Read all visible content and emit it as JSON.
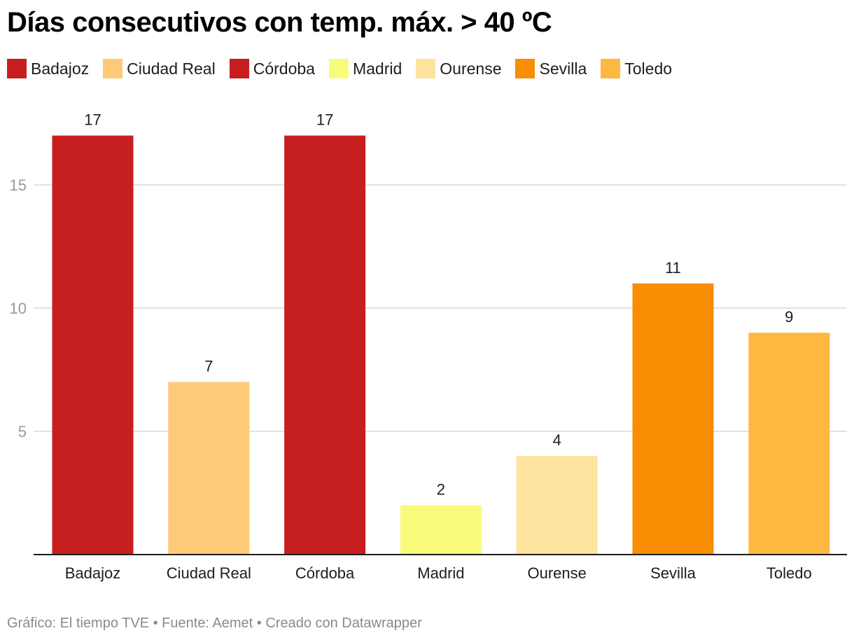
{
  "header": {
    "title": "Días consecutivos con temp. máx. > 40 ºC"
  },
  "legend": [
    {
      "label": "Badajoz",
      "color": "#c71e1f"
    },
    {
      "label": "Ciudad Real",
      "color": "#fdcb78"
    },
    {
      "label": "Córdoba",
      "color": "#c71e1f"
    },
    {
      "label": "Madrid",
      "color": "#f8fb7b"
    },
    {
      "label": "Ourense",
      "color": "#fee39e"
    },
    {
      "label": "Sevilla",
      "color": "#f98d03"
    },
    {
      "label": "Toledo",
      "color": "#feb842"
    }
  ],
  "chart_data": {
    "type": "bar",
    "title": "Días consecutivos con temp. máx. > 40 ºC",
    "xlabel": "",
    "ylabel": "",
    "categories": [
      "Badajoz",
      "Ciudad Real",
      "Córdoba",
      "Madrid",
      "Ourense",
      "Sevilla",
      "Toledo"
    ],
    "values": [
      17,
      7,
      17,
      2,
      4,
      11,
      9
    ],
    "colors": [
      "#c71e1f",
      "#fdcb78",
      "#c71e1f",
      "#f8fb7b",
      "#fee39e",
      "#f98d03",
      "#feb842"
    ],
    "ylim": [
      0,
      17
    ],
    "yticks": [
      5,
      10,
      15
    ],
    "grid": true,
    "legend_position": "top-left",
    "data_labels": true
  },
  "footer": {
    "text": "Gráfico: El tiempo TVE • Fuente: Aemet • Creado con Datawrapper"
  }
}
